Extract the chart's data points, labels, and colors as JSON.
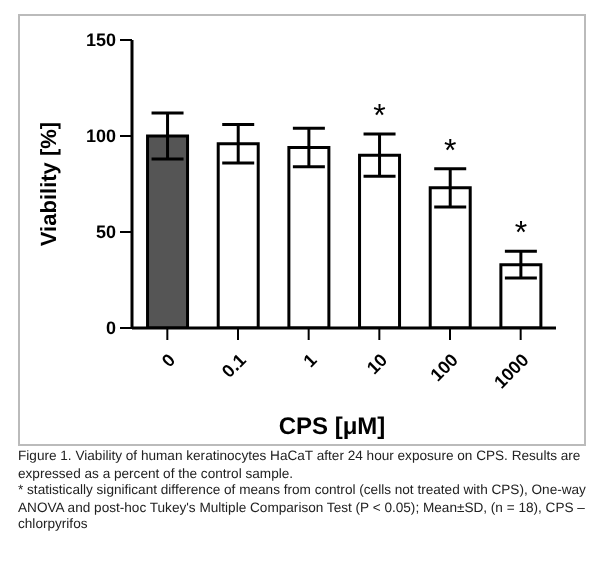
{
  "chart_data": {
    "type": "bar",
    "xlabel": "CPS [μM]",
    "ylabel": "Viability [%]",
    "categories": [
      "0",
      "0.1",
      "1",
      "10",
      "100",
      "1000"
    ],
    "values": [
      100,
      96,
      94,
      90,
      73,
      33
    ],
    "value_labels": [
      null,
      null,
      null,
      "*",
      "*",
      "*"
    ],
    "errors": [
      12,
      10,
      10,
      11,
      10,
      7
    ],
    "colors": [
      "#555555",
      "#ffffff",
      "#ffffff",
      "#ffffff",
      "#ffffff",
      "#ffffff"
    ],
    "ylim": [
      0,
      150
    ],
    "yticks": [
      0,
      50,
      100,
      150
    ],
    "grid": false,
    "legend": false,
    "annotations": [
      "Figure 1. Viability of human keratinocytes HaCaT after 24 hour exposure on CPS. Results are expressed as a percent of the control sample.",
      "* statistically significant difference of means from control (cells not treated with CPS), One-way ANOVA and post-hoc Tukey's Multiple Comparison Test (P < 0.05); Mean±SD, (n = 18), CPS – chlorpyrifos"
    ]
  }
}
